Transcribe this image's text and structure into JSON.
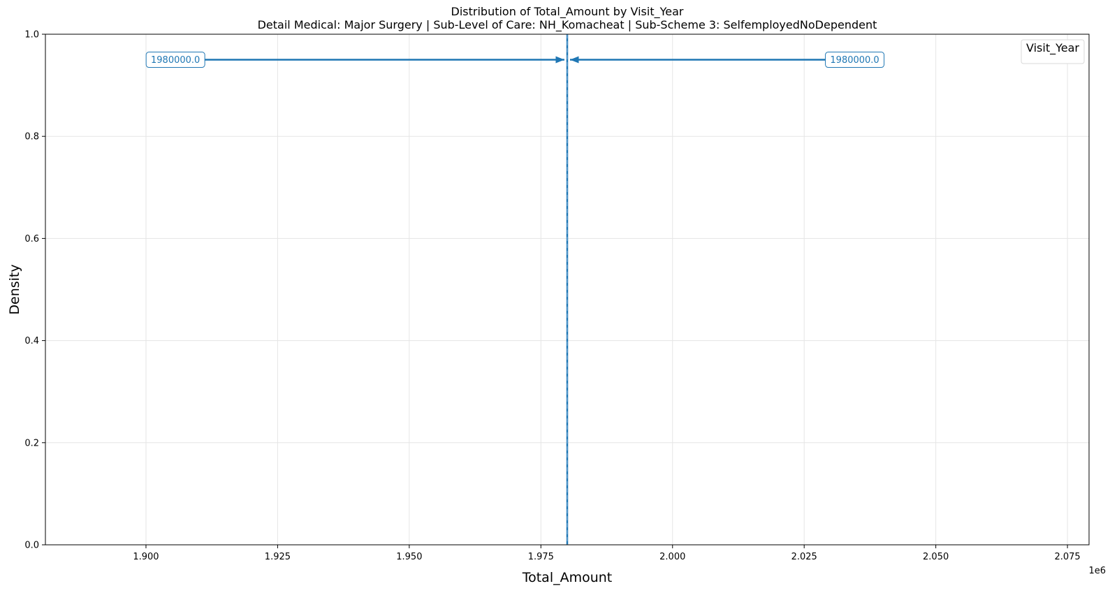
{
  "chart_data": {
    "type": "line",
    "title": "Distribution of Total_Amount by Visit_Year",
    "subtitle": "Detail Medical: Major Surgery | Sub-Level of Care: NH_Komacheat | Sub-Scheme 3: SelfemployedNoDependent",
    "xlabel": "Total_Amount",
    "ylabel": "Density",
    "x_offset_label": "1e6",
    "xlim": [
      1.8809,
      2.0791
    ],
    "ylim": [
      0,
      1
    ],
    "x_ticks": [
      1.9,
      1.925,
      1.95,
      1.975,
      2.0,
      2.025,
      2.05,
      2.075
    ],
    "x_tick_labels": [
      "1.900",
      "1.925",
      "1.950",
      "1.975",
      "2.000",
      "2.025",
      "2.050",
      "2.075"
    ],
    "y_ticks": [
      0,
      0.2,
      0.4,
      0.6,
      0.8,
      1.0
    ],
    "y_tick_labels": [
      "0.0",
      "0.2",
      "0.4",
      "0.6",
      "0.8",
      "1.0"
    ],
    "grid": true,
    "legend_title": "Visit_Year",
    "legend_placement": "top-right",
    "series": [
      {
        "color": "#1f77b4",
        "x": 1.98
      }
    ],
    "annotations": [
      {
        "text": "1980000.0",
        "x_text": 1.9056,
        "y": 0.95,
        "x_target": 1.98,
        "side": "left"
      },
      {
        "text": "1980000.0",
        "x_text": 2.0346,
        "y": 0.95,
        "x_target": 1.98,
        "side": "right"
      }
    ],
    "colors": {
      "series": "#1f77b4",
      "grid": "#e5e5e5"
    }
  }
}
